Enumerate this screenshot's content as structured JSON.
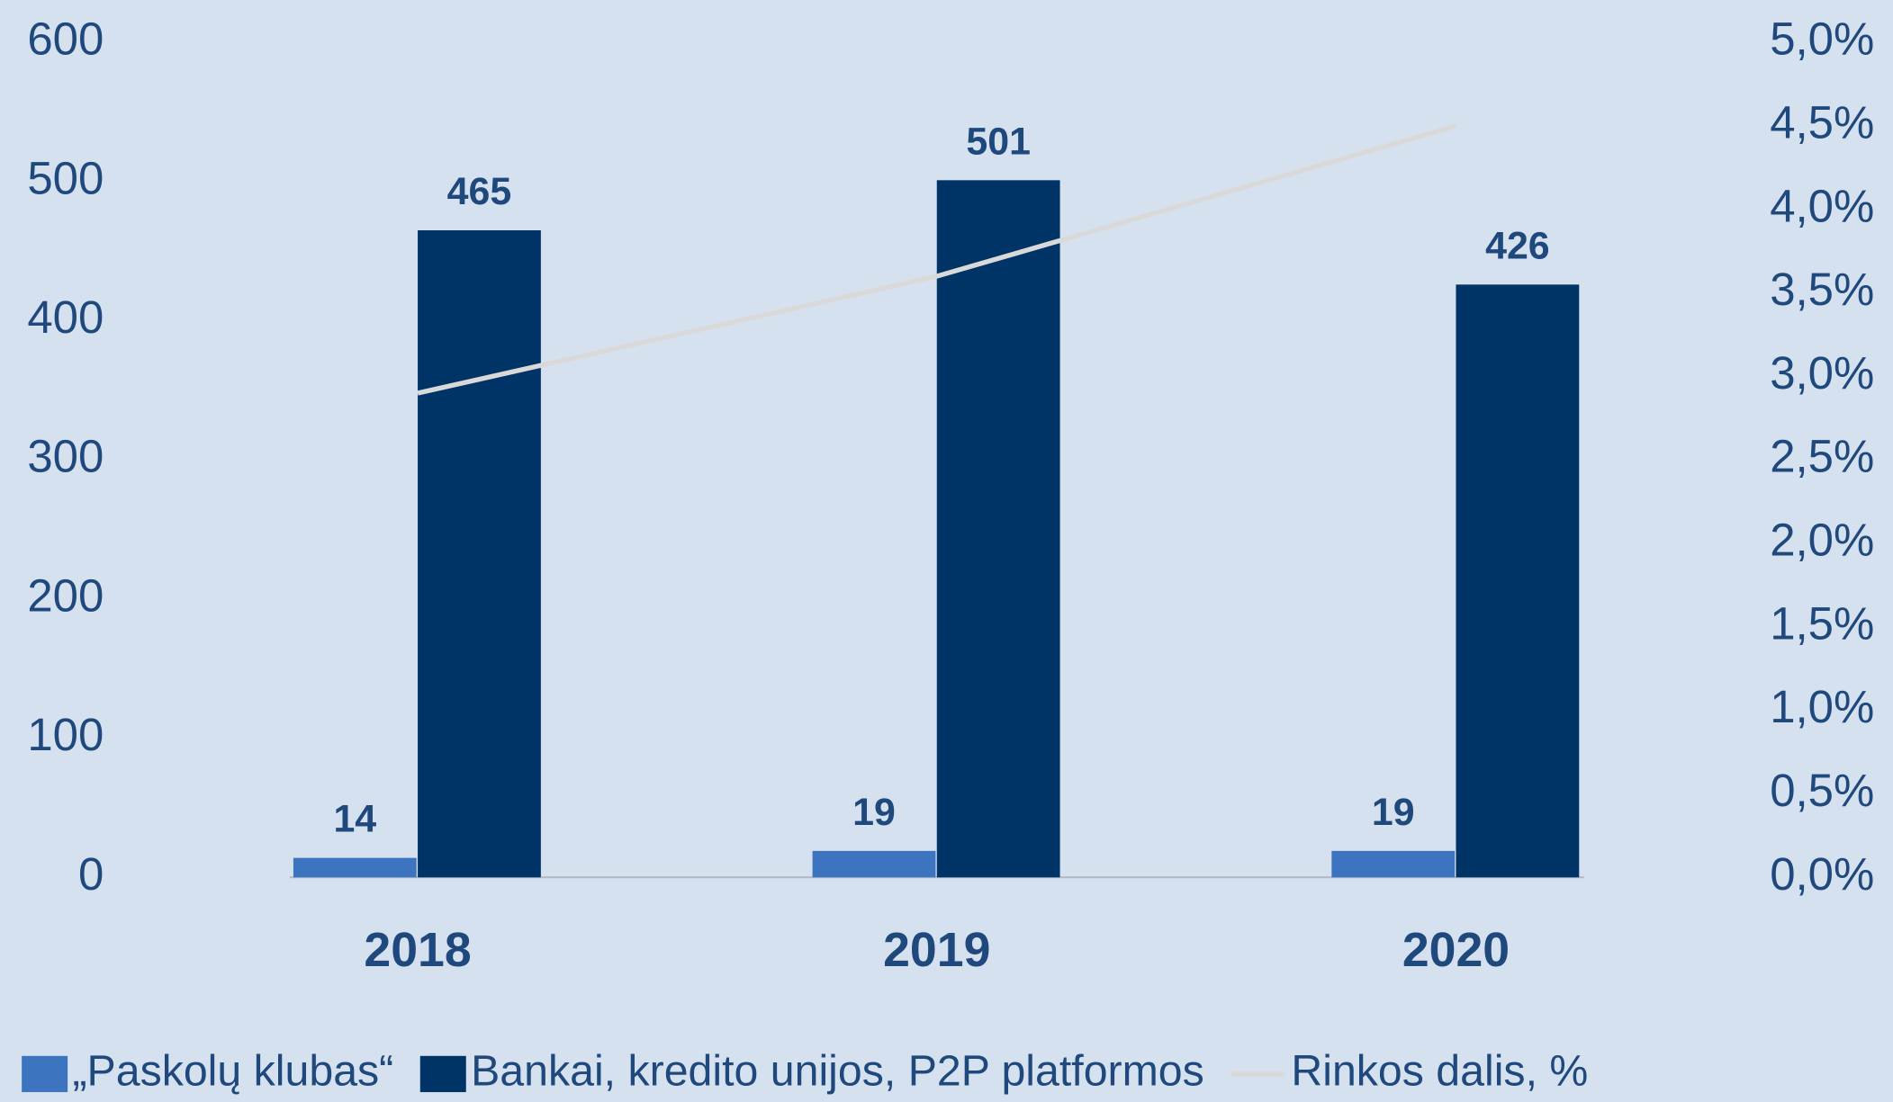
{
  "chart_data": {
    "type": "bar",
    "categories": [
      "2018",
      "2019",
      "2020"
    ],
    "series": [
      {
        "name": "„Paskolų klubas“",
        "color": "#3d74bf",
        "values": [
          14,
          19,
          19
        ]
      },
      {
        "name": "Bankai, kredito unijos, P2P platformos",
        "color": "#003366",
        "values": [
          465,
          501,
          426
        ]
      },
      {
        "name": "Rinkos dalis, %",
        "color": "#d9d9d9",
        "type": "line",
        "axis": "y2",
        "values": [
          2.9,
          3.6,
          4.5
        ]
      }
    ],
    "ylim": [
      0,
      600
    ],
    "yticks": [
      0,
      100,
      200,
      300,
      400,
      500,
      600
    ],
    "y2lim": [
      0,
      5
    ],
    "y2ticks": [
      {
        "value": 0,
        "label": "0,0%"
      },
      {
        "value": 0.5,
        "label": "0,5%"
      },
      {
        "value": 1,
        "label": "1,0%"
      },
      {
        "value": 1.5,
        "label": "1,5%"
      },
      {
        "value": 2,
        "label": "2,0%"
      },
      {
        "value": 2.5,
        "label": "2,5%"
      },
      {
        "value": 3,
        "label": "3,0%"
      },
      {
        "value": 3.5,
        "label": "3,5%"
      },
      {
        "value": 4,
        "label": "4,0%"
      },
      {
        "value": 4.5,
        "label": "4,5%"
      },
      {
        "value": 5,
        "label": "5,0%"
      }
    ],
    "legend": "bottom",
    "grid": false
  }
}
